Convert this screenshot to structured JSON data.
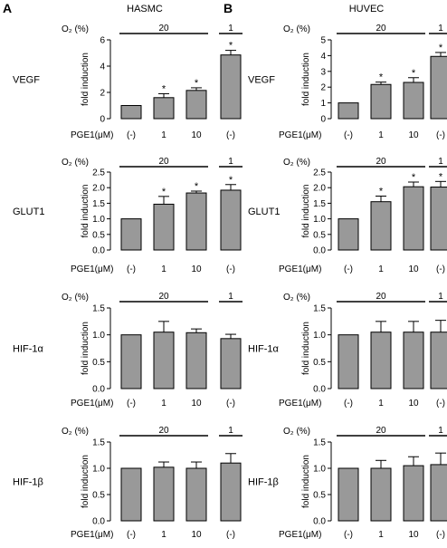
{
  "panels": [
    {
      "letter": "A",
      "title": "HASMC"
    },
    {
      "letter": "B",
      "title": "HUVEC"
    }
  ],
  "o2_label": "O₂ (%)",
  "pge_label": "PGE1(μM)",
  "o2_groups": [
    "20",
    "1"
  ],
  "colors": {
    "bar": "#999999",
    "stroke": "#000000"
  },
  "chart_data": [
    {
      "type": "bar",
      "panel": "A",
      "title": "",
      "ylabel": "fold induction",
      "gene": "VEGF",
      "categories": [
        "(-)",
        "1",
        "10",
        "(-)"
      ],
      "values": [
        1.0,
        1.6,
        2.15,
        4.85
      ],
      "errors": [
        0,
        0.3,
        0.2,
        0.35
      ],
      "significant": [
        false,
        true,
        true,
        true
      ],
      "ylim": [
        0,
        6
      ],
      "yticks": [
        0,
        2,
        4,
        6
      ]
    },
    {
      "type": "bar",
      "panel": "A",
      "title": "",
      "ylabel": "fold induction",
      "gene": "GLUT1",
      "categories": [
        "(-)",
        "1",
        "10",
        "(-)"
      ],
      "values": [
        1.0,
        1.47,
        1.83,
        1.92
      ],
      "errors": [
        0,
        0.25,
        0.06,
        0.18
      ],
      "significant": [
        false,
        true,
        true,
        true
      ],
      "ylim": [
        0,
        2.5
      ],
      "yticks": [
        0.0,
        0.5,
        1.0,
        1.5,
        2.0,
        2.5
      ]
    },
    {
      "type": "bar",
      "panel": "A",
      "title": "",
      "ylabel": "fold induction",
      "gene": "HIF-1α",
      "categories": [
        "(-)",
        "1",
        "10",
        "(-)"
      ],
      "values": [
        1.0,
        1.05,
        1.04,
        0.93
      ],
      "errors": [
        0,
        0.2,
        0.07,
        0.08
      ],
      "significant": [
        false,
        false,
        false,
        false
      ],
      "ylim": [
        0,
        1.5
      ],
      "yticks": [
        0.0,
        0.5,
        1.0,
        1.5
      ]
    },
    {
      "type": "bar",
      "panel": "A",
      "title": "",
      "ylabel": "fold induction",
      "gene": "HIF-1β",
      "categories": [
        "(-)",
        "1",
        "10",
        "(-)"
      ],
      "values": [
        1.0,
        1.02,
        1.0,
        1.1
      ],
      "errors": [
        0,
        0.1,
        0.12,
        0.18
      ],
      "significant": [
        false,
        false,
        false,
        false
      ],
      "ylim": [
        0,
        1.5
      ],
      "yticks": [
        0.0,
        0.5,
        1.0,
        1.5
      ]
    },
    {
      "type": "bar",
      "panel": "B",
      "title": "",
      "ylabel": "fold induction",
      "gene": "VEGF",
      "categories": [
        "(-)",
        "1",
        "10",
        "(-)"
      ],
      "values": [
        1.0,
        2.17,
        2.3,
        3.95
      ],
      "errors": [
        0,
        0.15,
        0.3,
        0.25
      ],
      "significant": [
        false,
        true,
        true,
        true
      ],
      "ylim": [
        0,
        5
      ],
      "yticks": [
        0,
        1,
        2,
        3,
        4,
        5
      ]
    },
    {
      "type": "bar",
      "panel": "B",
      "title": "",
      "ylabel": "fold induction",
      "gene": "GLUT1",
      "categories": [
        "(-)",
        "1",
        "10",
        "(-)"
      ],
      "values": [
        1.0,
        1.55,
        2.03,
        2.02
      ],
      "errors": [
        0,
        0.18,
        0.15,
        0.18
      ],
      "significant": [
        false,
        true,
        true,
        true
      ],
      "ylim": [
        0,
        2.5
      ],
      "yticks": [
        0.0,
        0.5,
        1.0,
        1.5,
        2.0,
        2.5
      ]
    },
    {
      "type": "bar",
      "panel": "B",
      "title": "",
      "ylabel": "fold induction",
      "gene": "HIF-1α",
      "categories": [
        "(-)",
        "1",
        "10",
        "(-)"
      ],
      "values": [
        1.0,
        1.05,
        1.05,
        1.05
      ],
      "errors": [
        0,
        0.2,
        0.2,
        0.22
      ],
      "significant": [
        false,
        false,
        false,
        false
      ],
      "ylim": [
        0,
        1.5
      ],
      "yticks": [
        0.0,
        0.5,
        1.0,
        1.5
      ]
    },
    {
      "type": "bar",
      "panel": "B",
      "title": "",
      "ylabel": "fold induction",
      "gene": "HIF-1β",
      "categories": [
        "(-)",
        "1",
        "10",
        "(-)"
      ],
      "values": [
        1.0,
        1.0,
        1.05,
        1.07
      ],
      "errors": [
        0,
        0.15,
        0.17,
        0.22
      ],
      "significant": [
        false,
        false,
        false,
        false
      ],
      "ylim": [
        0,
        1.5
      ],
      "yticks": [
        0.0,
        0.5,
        1.0,
        1.5
      ]
    }
  ]
}
